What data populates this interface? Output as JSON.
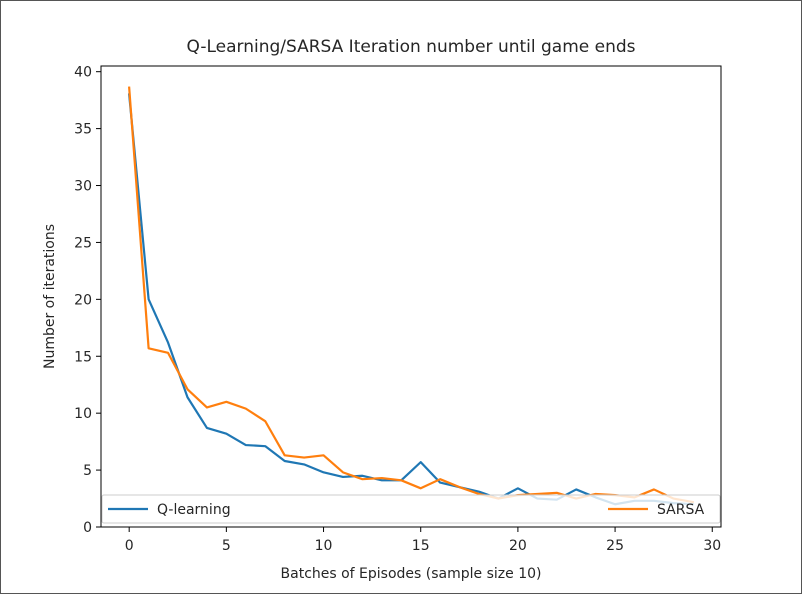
{
  "chart_data": {
    "type": "line",
    "title": "Q-Learning/SARSA Iteration number until game ends",
    "xlabel": "Batches of Episodes (sample size 10)",
    "ylabel": "Number of iterations",
    "xlim": [
      -1.45,
      30.45
    ],
    "ylim": [
      0,
      40.5
    ],
    "xticks": [
      0,
      5,
      10,
      15,
      20,
      25,
      30
    ],
    "yticks": [
      0,
      5,
      10,
      15,
      20,
      25,
      30,
      35,
      40
    ],
    "grid": false,
    "legend": "bottom",
    "x": [
      0,
      1,
      2,
      3,
      4,
      5,
      6,
      7,
      8,
      9,
      10,
      11,
      12,
      13,
      14,
      15,
      16,
      17,
      18,
      19,
      20,
      21,
      22,
      23,
      24,
      25,
      26,
      27,
      28,
      29
    ],
    "series": [
      {
        "name": "Q-learning",
        "color": "#1f77b4",
        "values": [
          38.0,
          20.0,
          16.2,
          11.4,
          8.7,
          8.2,
          7.2,
          7.1,
          5.8,
          5.5,
          4.8,
          4.4,
          4.5,
          4.1,
          4.1,
          5.7,
          3.9,
          3.5,
          3.1,
          2.5,
          3.4,
          2.5,
          2.4,
          3.3,
          2.6,
          2.0,
          2.3,
          2.3,
          2.1,
          2.0
        ]
      },
      {
        "name": "SARSA",
        "color": "#ff7f0e",
        "values": [
          38.6,
          15.7,
          15.3,
          12.1,
          10.5,
          11.0,
          10.4,
          9.3,
          6.3,
          6.1,
          6.3,
          4.8,
          4.2,
          4.3,
          4.1,
          3.4,
          4.2,
          3.5,
          2.9,
          2.5,
          2.8,
          2.9,
          3.0,
          2.5,
          2.9,
          2.8,
          2.6,
          3.3,
          2.5,
          2.2
        ]
      }
    ]
  }
}
